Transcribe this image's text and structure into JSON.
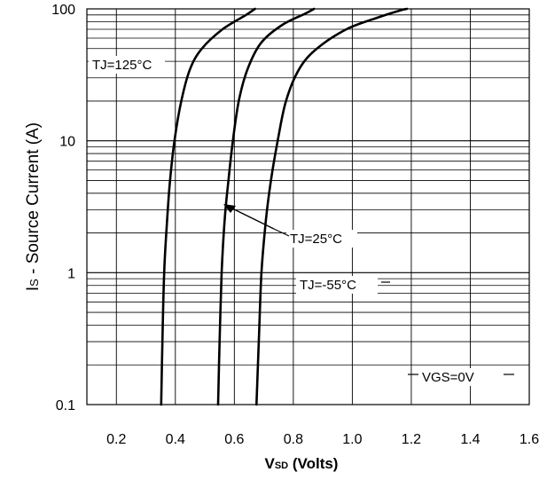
{
  "chart_data": {
    "type": "line",
    "x_scale": "linear",
    "y_scale": "log",
    "xlim": [
      0.1,
      1.6
    ],
    "ylim": [
      0.1,
      100
    ],
    "x_ticks": [
      "0.2",
      "0.4",
      "0.6",
      "0.8",
      "1.0",
      "1.2",
      "1.4",
      "1.6"
    ],
    "y_ticks": [
      "0.1",
      "1",
      "10",
      "100"
    ],
    "x_tick_values": [
      0.2,
      0.4,
      0.6,
      0.8,
      1.0,
      1.2,
      1.4,
      1.6
    ],
    "y_tick_values": [
      0.1,
      1,
      10,
      100
    ],
    "xlabel_main": "V",
    "xlabel_sub": "SD",
    "xlabel_unit": " (Volts)",
    "ylabel_main": "I",
    "ylabel_sub": "S",
    "ylabel_rest": " - Source Current (A)",
    "grid": true,
    "series": [
      {
        "name": "TJ=125°C",
        "points": [
          [
            0.352,
            0.1
          ],
          [
            0.356,
            0.3
          ],
          [
            0.362,
            1.0
          ],
          [
            0.372,
            2.5
          ],
          [
            0.382,
            5.0
          ],
          [
            0.397,
            10
          ],
          [
            0.42,
            20
          ],
          [
            0.45,
            35
          ],
          [
            0.49,
            50
          ],
          [
            0.56,
            70
          ],
          [
            0.64,
            90
          ],
          [
            0.67,
            100
          ]
        ]
      },
      {
        "name": "TJ=25°C",
        "points": [
          [
            0.545,
            0.1
          ],
          [
            0.55,
            0.3
          ],
          [
            0.557,
            1.0
          ],
          [
            0.567,
            2.5
          ],
          [
            0.58,
            5.0
          ],
          [
            0.595,
            10
          ],
          [
            0.615,
            20
          ],
          [
            0.645,
            35
          ],
          [
            0.69,
            55
          ],
          [
            0.76,
            75
          ],
          [
            0.84,
            92
          ],
          [
            0.87,
            100
          ]
        ]
      },
      {
        "name": "TJ=-55°C",
        "points": [
          [
            0.675,
            0.1
          ],
          [
            0.683,
            0.3
          ],
          [
            0.692,
            1.0
          ],
          [
            0.707,
            2.5
          ],
          [
            0.724,
            5.0
          ],
          [
            0.747,
            10
          ],
          [
            0.775,
            20
          ],
          [
            0.82,
            35
          ],
          [
            0.88,
            50
          ],
          [
            0.98,
            70
          ],
          [
            1.08,
            85
          ],
          [
            1.16,
            97
          ],
          [
            1.185,
            100
          ]
        ]
      }
    ],
    "annotations": {
      "tj125": "TJ=125°C",
      "tj25": "TJ=25°C",
      "tj_55": "TJ=-55°C",
      "vgs": "VGS=0V"
    }
  }
}
